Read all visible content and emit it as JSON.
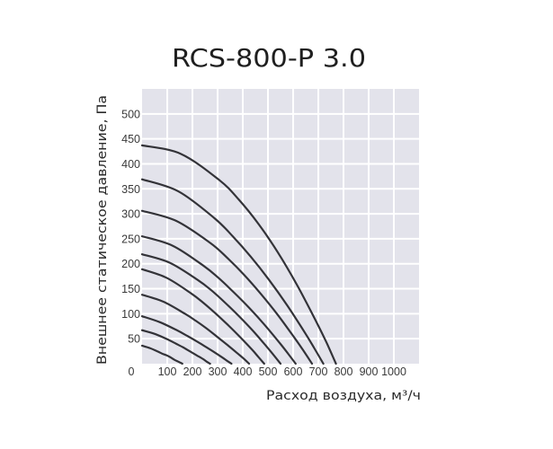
{
  "title": "RCS-800-P 3.0",
  "axes": {
    "xlabel": "Расход воздуха, м³/ч",
    "ylabel": "Внешнее статическое давление, Па",
    "origin_label": "0"
  },
  "colors": {
    "plot_background": "#e3e3eb",
    "grid": "#ffffff",
    "curve": "#333338"
  },
  "chart_data": {
    "type": "line",
    "title": "RCS-800-P 3.0",
    "xlabel": "Расход воздуха, м³/ч",
    "ylabel": "Внешнее статическое давление, Па",
    "xlim": [
      0,
      1100
    ],
    "ylim": [
      0,
      550
    ],
    "xticks": [
      100,
      200,
      300,
      400,
      500,
      600,
      700,
      800,
      900,
      1000
    ],
    "yticks": [
      50,
      100,
      150,
      200,
      250,
      300,
      350,
      400,
      450,
      500
    ],
    "origin_tick": 0,
    "grid": true,
    "legend": null,
    "series": [
      {
        "name": "curve-1",
        "x": [
          0,
          154,
          308,
          385,
          462,
          539,
          616,
          693,
          732,
          770
        ],
        "y": [
          437,
          420,
          367,
          328,
          280,
          223,
          157,
          83,
          43,
          0
        ]
      },
      {
        "name": "curve-2",
        "x": [
          0,
          144,
          288,
          360,
          432,
          504,
          576,
          648,
          684,
          720
        ],
        "y": [
          369,
          345,
          291,
          255,
          214,
          168,
          117,
          61,
          31,
          0
        ]
      },
      {
        "name": "curve-3",
        "x": [
          0,
          135,
          270,
          338,
          405,
          473,
          540,
          608,
          641,
          675
        ],
        "y": [
          306,
          286,
          242,
          212,
          178,
          139,
          97,
          50,
          26,
          0
        ]
      },
      {
        "name": "curve-4",
        "x": [
          0,
          122,
          244,
          305,
          366,
          427,
          488,
          549,
          580,
          610
        ],
        "y": [
          255,
          236,
          196,
          171,
          142,
          111,
          77,
          40,
          20,
          0
        ]
      },
      {
        "name": "curve-5",
        "x": [
          0,
          110,
          220,
          275,
          330,
          385,
          440,
          495,
          523,
          550
        ],
        "y": [
          219,
          202,
          168,
          147,
          122,
          95,
          66,
          34,
          17,
          0
        ]
      },
      {
        "name": "curve-6",
        "x": [
          0,
          97,
          194,
          243,
          291,
          340,
          388,
          437,
          461,
          485
        ],
        "y": [
          189,
          172,
          141,
          122,
          101,
          78,
          54,
          28,
          14,
          0
        ]
      },
      {
        "name": "curve-7",
        "x": [
          0,
          85,
          170,
          213,
          255,
          298,
          340,
          383,
          404,
          425
        ],
        "y": [
          138,
          124,
          100,
          86,
          71,
          54,
          37,
          19,
          10,
          0
        ]
      },
      {
        "name": "curve-8",
        "x": [
          0,
          71,
          142,
          178,
          213,
          249,
          284,
          320,
          337,
          355
        ],
        "y": [
          95,
          83,
          66,
          56,
          46,
          35,
          24,
          12,
          6,
          0
        ]
      },
      {
        "name": "curve-9",
        "x": [
          0,
          54,
          108,
          135,
          162,
          189,
          216,
          243,
          257,
          270
        ],
        "y": [
          67,
          59,
          47,
          40,
          33,
          25,
          17,
          9,
          4,
          0
        ]
      },
      {
        "name": "curve-10",
        "x": [
          0,
          32,
          64,
          80,
          96,
          112,
          128,
          144,
          152,
          160
        ],
        "y": [
          36,
          31,
          24,
          20,
          17,
          13,
          8,
          4,
          2,
          0
        ]
      }
    ]
  }
}
